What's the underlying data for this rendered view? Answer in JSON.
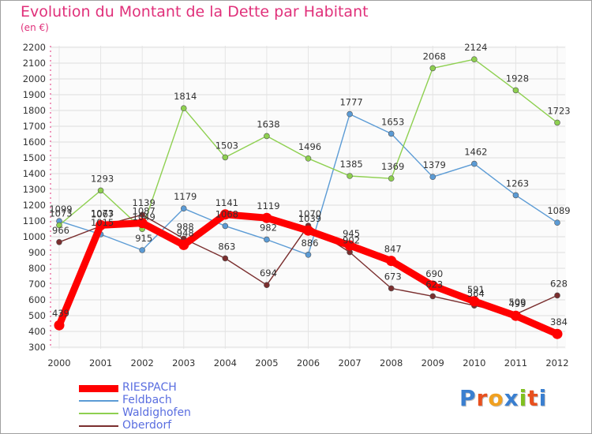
{
  "header": {
    "title": "Evolution du Montant de la Dette par Habitant",
    "unit": "(en €)"
  },
  "logo": {
    "text": "Proxiti",
    "colors": [
      "#3a7fd0",
      "#e8501e",
      "#f0a020",
      "#3a7fd0",
      "#80c020",
      "#e8501e",
      "#3a7fd0"
    ]
  },
  "chart_data": {
    "type": "line",
    "title": "Evolution du Montant de la Dette par Habitant",
    "subtitle": "(en €)",
    "xlabel": "",
    "ylabel": "",
    "x": [
      "2000",
      "2001",
      "2002",
      "2003",
      "2004",
      "2005",
      "2006",
      "2007",
      "2008",
      "2009",
      "2010",
      "2011",
      "2012"
    ],
    "ylim": [
      300,
      2200
    ],
    "ytick_step": 100,
    "grid": true,
    "legend_position": "bottom-left",
    "series": [
      {
        "name": "RIESPACH",
        "color": "#ff0000",
        "values": [
          439,
          1073,
          1087,
          948,
          1141,
          1119,
          1039,
          945,
          847,
          690,
          591,
          499,
          384
        ]
      },
      {
        "name": "Feldbach",
        "color": "#5b9bd5",
        "values": [
          1099,
          1015,
          915,
          1179,
          1068,
          982,
          886,
          1777,
          1653,
          1379,
          1462,
          1263,
          1089
        ]
      },
      {
        "name": "Waldighofen",
        "color": "#8ed050",
        "values": [
          1073,
          1293,
          1049,
          1814,
          1503,
          1638,
          1496,
          1385,
          1369,
          2068,
          2124,
          1928,
          1723
        ]
      },
      {
        "name": "Oberdorf",
        "color": "#7a2e2e",
        "values": [
          966,
          1067,
          1139,
          988,
          863,
          694,
          1070,
          902,
          673,
          623,
          564,
          509,
          628
        ]
      }
    ]
  }
}
